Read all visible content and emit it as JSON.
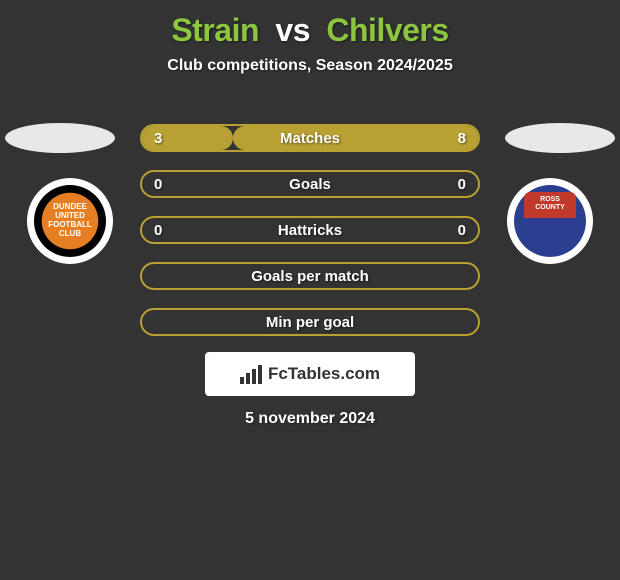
{
  "title": {
    "player1": "Strain",
    "vs": "vs",
    "player2": "Chilvers",
    "player1_color": "#8cc63f",
    "vs_color": "#ffffff",
    "player2_color": "#8cc63f",
    "fontsize": 32
  },
  "subtitle": "Club competitions, Season 2024/2025",
  "background_color": "#333333",
  "crests": {
    "left": {
      "text": "DUNDEE UNITED FOOTBALL CLUB",
      "primary_color": "#e67e22",
      "secondary_color": "#000000"
    },
    "right": {
      "text_top": "ROSS",
      "text_bottom": "COUNTY",
      "primary_color": "#2c3e8f",
      "secondary_color": "#c0392b"
    }
  },
  "stats": {
    "bar_border_color": "#b8a032",
    "bar_fill_color": "#b8a032",
    "text_color": "#ffffff",
    "label_fontsize": 15,
    "rows": [
      {
        "left": "3",
        "label": "Matches",
        "right": "8",
        "fill_left_pct": 27,
        "fill_right_pct": 73
      },
      {
        "left": "0",
        "label": "Goals",
        "right": "0",
        "fill_left_pct": 0,
        "fill_right_pct": 0
      },
      {
        "left": "0",
        "label": "Hattricks",
        "right": "0",
        "fill_left_pct": 0,
        "fill_right_pct": 0
      },
      {
        "left": "",
        "label": "Goals per match",
        "right": "",
        "fill_left_pct": 0,
        "fill_right_pct": 0
      },
      {
        "left": "",
        "label": "Min per goal",
        "right": "",
        "fill_left_pct": 0,
        "fill_right_pct": 0
      }
    ]
  },
  "branding": {
    "text": "FcTables.com",
    "background_color": "#ffffff",
    "text_color": "#333333"
  },
  "date": "5 november 2024"
}
